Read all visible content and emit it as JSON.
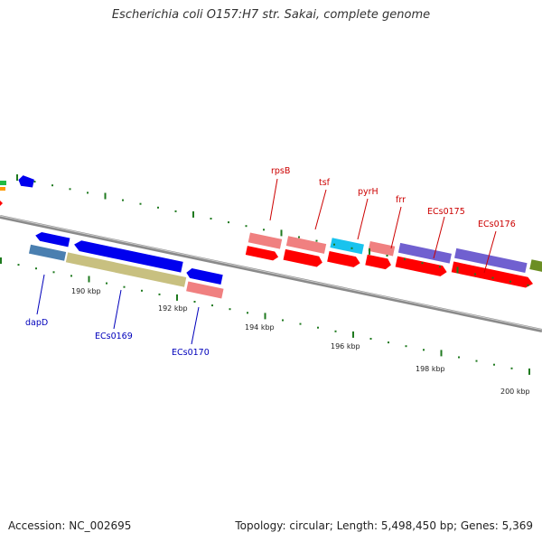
{
  "title": "Escherichia coli O157:H7 str. Sakai, complete genome",
  "accession": "Accession: NC_002695",
  "summary": "Topology: circular; Length: 5,498,450 bp; Genes: 5,369",
  "colors": {
    "forward_label": "#cc0000",
    "reverse_label": "#0000bb",
    "backbone": "#8a8a8a",
    "tick": "#1f7a1f",
    "red": "#ff0000",
    "pink": "#f08080",
    "blue": "#0000ee",
    "steel": "#4a7fb0",
    "khaki": "#c8c080",
    "cyan": "#19c3ee",
    "purple": "#7060d0",
    "olive": "#6b8e23"
  },
  "tick_labels": [
    "190 kbp",
    "192 kbp",
    "194 kbp",
    "196 kbp",
    "198 kbp",
    "200 kbp"
  ],
  "gene_labels_forward": [
    "rpsB",
    "tsf",
    "pyrH",
    "frr",
    "ECs0175",
    "ECs0176"
  ],
  "gene_labels_reverse": [
    "dapD",
    "ECs0169",
    "ECs0170"
  ]
}
